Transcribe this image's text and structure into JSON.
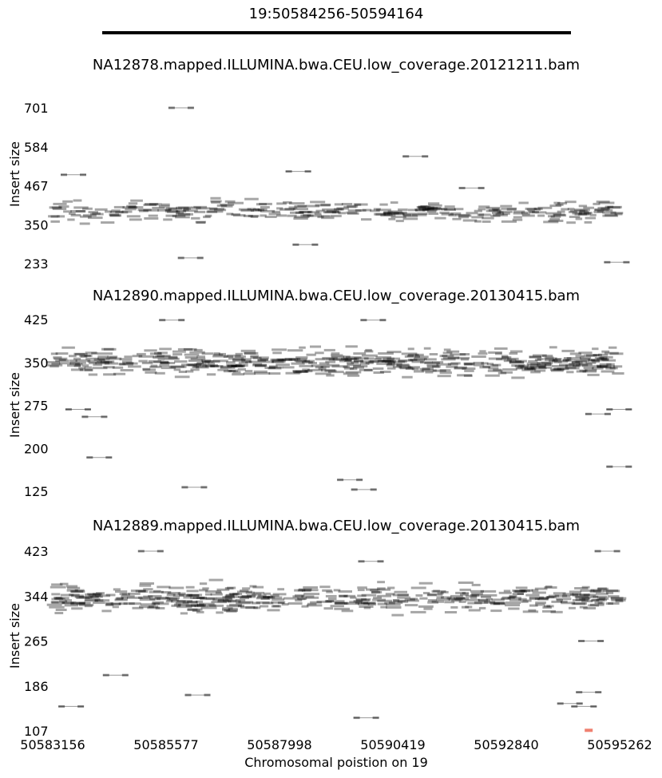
{
  "region_title": "19:50584256-50594164",
  "xlabel": "Chromosomal poistion on 19",
  "x_ticks": [
    "50583156",
    "50585577",
    "50587998",
    "50590419",
    "50592840",
    "50595262"
  ],
  "chart_data": [
    {
      "type": "scatter",
      "title": "NA12878.mapped.ILLUMINA.bwa.CEU.low_coverage.20121211.bam",
      "ylabel": "Insert size",
      "y_ticks": [
        "701",
        "584",
        "467",
        "350",
        "233"
      ],
      "ylim": [
        233,
        701
      ],
      "xlim": [
        50583156,
        50595262
      ],
      "outliers": [
        [
          50585900,
          701
        ],
        [
          50588400,
          510
        ],
        [
          50590900,
          555
        ],
        [
          50583600,
          500
        ],
        [
          50592100,
          460
        ],
        [
          50586100,
          250
        ],
        [
          50588550,
          290
        ],
        [
          50595200,
          237
        ]
      ],
      "band": {
        "center": 390,
        "spread": 45,
        "count": 330
      }
    },
    {
      "type": "scatter",
      "title": "NA12890.mapped.ILLUMINA.bwa.CEU.low_coverage.20130415.bam",
      "ylabel": "Insert size",
      "y_ticks": [
        "425",
        "350",
        "275",
        "200",
        "125"
      ],
      "ylim": [
        125,
        425
      ],
      "xlim": [
        50583156,
        50595262
      ],
      "outliers": [
        [
          50584150,
          184
        ],
        [
          50586180,
          132
        ],
        [
          50589500,
          145
        ],
        [
          50589800,
          128
        ],
        [
          50594800,
          260
        ],
        [
          50595250,
          268
        ],
        [
          50595250,
          168
        ],
        [
          50583700,
          268
        ],
        [
          50584050,
          255
        ],
        [
          50585700,
          424
        ],
        [
          50590000,
          424
        ]
      ],
      "band": {
        "center": 350,
        "spread": 32,
        "count": 520
      }
    },
    {
      "type": "scatter",
      "title": "NA12889.mapped.ILLUMINA.bwa.CEU.low_coverage.20130415.bam",
      "ylabel": "Insert size",
      "y_ticks": [
        "423",
        "344",
        "265",
        "186",
        "107"
      ],
      "ylim": [
        107,
        423
      ],
      "xlim": [
        50583156,
        50595262
      ],
      "outliers": [
        [
          50583550,
          150
        ],
        [
          50584500,
          205
        ],
        [
          50586250,
          170
        ],
        [
          50589850,
          130
        ],
        [
          50594200,
          155
        ],
        [
          50594500,
          150
        ],
        [
          50594600,
          175
        ],
        [
          50594650,
          265
        ],
        [
          50585250,
          423
        ],
        [
          50589950,
          405
        ],
        [
          50595000,
          423
        ]
      ],
      "highlight": [
        [
          50594600,
          108
        ]
      ],
      "highlight_color": "#f08070",
      "band": {
        "center": 340,
        "spread": 35,
        "count": 480
      }
    }
  ]
}
